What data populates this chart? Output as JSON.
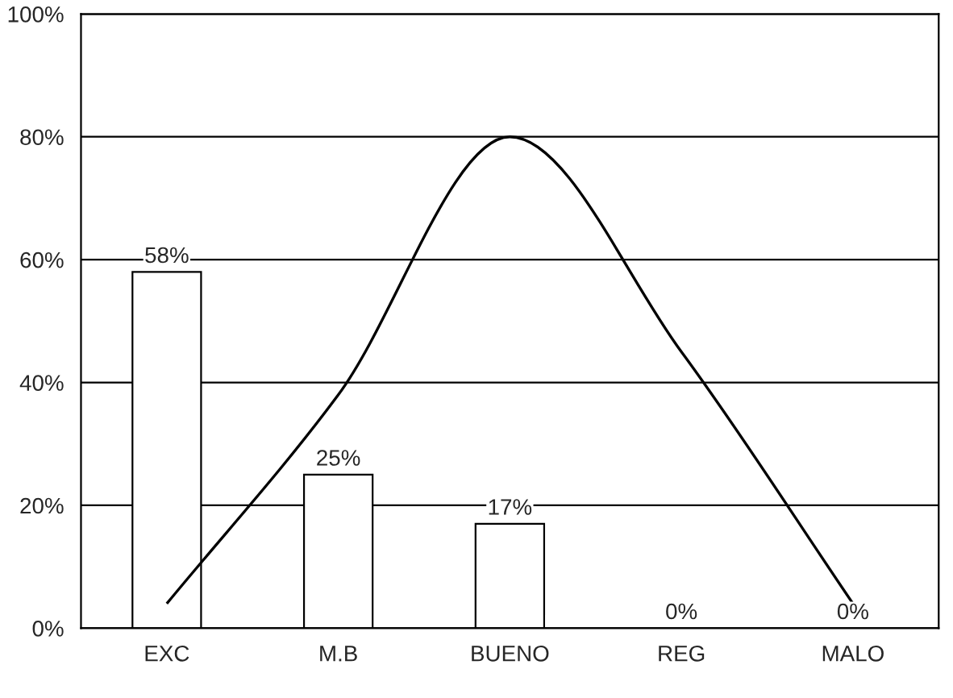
{
  "chart_data": {
    "type": "bar",
    "categories": [
      "EXC",
      "M.B",
      "BUENO",
      "REG",
      "MALO"
    ],
    "series": [
      {
        "color": "#ffffff",
        "values": [
          58,
          25,
          17,
          0,
          0
        ],
        "value_labels": [
          "58%",
          "25%",
          "17%",
          "0%",
          "0%"
        ]
      },
      {
        "type": "line",
        "color": "#000000",
        "values": [
          4,
          38,
          80,
          45,
          4
        ]
      }
    ],
    "ylim": [
      0,
      100
    ],
    "yticks": [
      {
        "value": 0,
        "label": "0%"
      },
      {
        "value": 20,
        "label": "20%"
      },
      {
        "value": 40,
        "label": "40%"
      },
      {
        "value": 60,
        "label": "60%"
      },
      {
        "value": 80,
        "label": "80%"
      },
      {
        "value": 100,
        "label": "100%"
      }
    ],
    "grid": "y",
    "marker": "none",
    "line_style": "solid"
  }
}
